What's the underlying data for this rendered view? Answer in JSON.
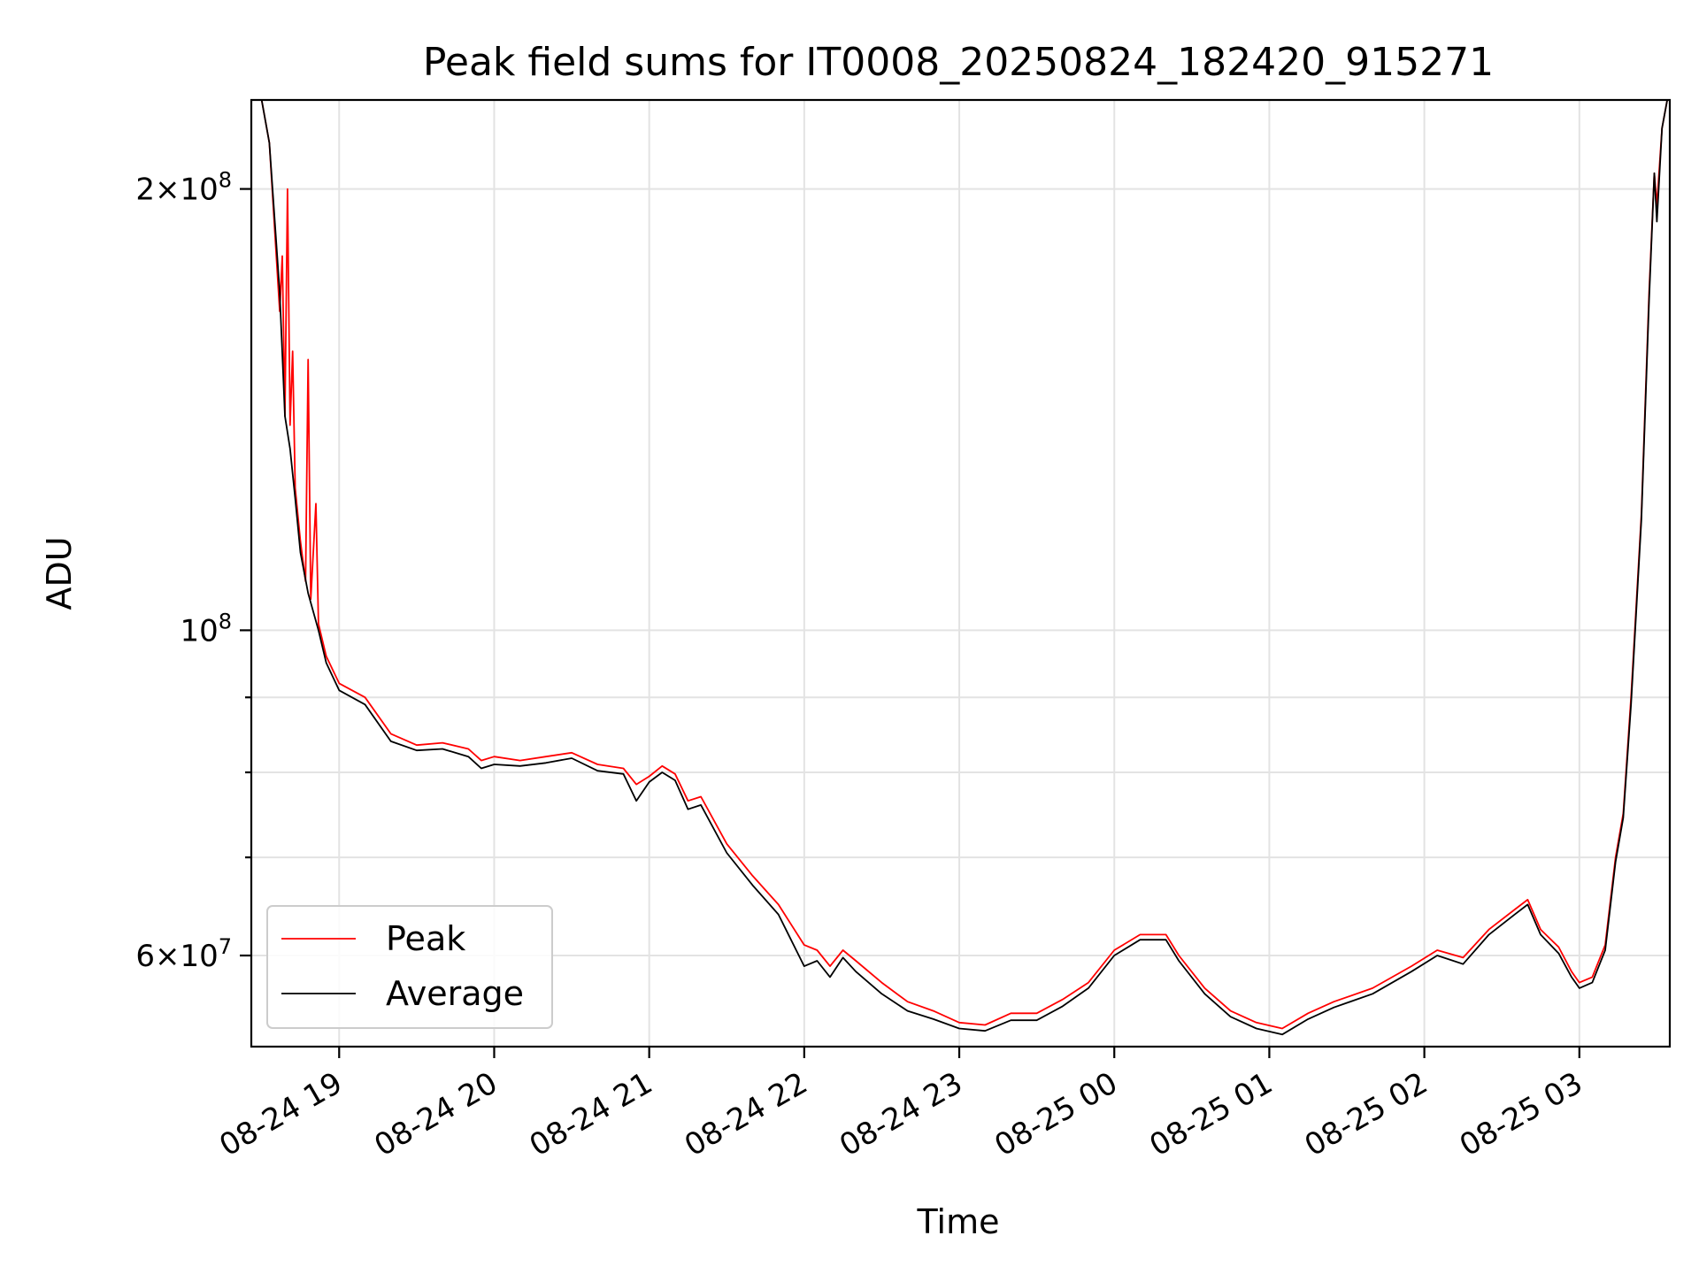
{
  "chart_data": {
    "type": "line",
    "title": "Peak field sums for IT0008_20250824_182420_915271",
    "xlabel": "Time",
    "ylabel": "ADU",
    "y_scale": "log",
    "grid": true,
    "legend_position": "lower-left",
    "xlim": [
      "2025-08-24 18:26",
      "2025-08-25 03:35"
    ],
    "ylim": [
      52000000,
      230000000
    ],
    "x_ticks": [
      {
        "time": "2025-08-24 19:00",
        "label": "08-24 19"
      },
      {
        "time": "2025-08-24 20:00",
        "label": "08-24 20"
      },
      {
        "time": "2025-08-24 21:00",
        "label": "08-24 21"
      },
      {
        "time": "2025-08-24 22:00",
        "label": "08-24 22"
      },
      {
        "time": "2025-08-24 23:00",
        "label": "08-24 23"
      },
      {
        "time": "2025-08-25 00:00",
        "label": "08-25 00"
      },
      {
        "time": "2025-08-25 01:00",
        "label": "08-25 01"
      },
      {
        "time": "2025-08-25 02:00",
        "label": "08-25 02"
      },
      {
        "time": "2025-08-25 03:00",
        "label": "08-25 03"
      }
    ],
    "y_ticks": [
      {
        "value": 60000000,
        "mantissa": "6",
        "exp": "7"
      },
      {
        "value": 100000000,
        "mantissa": "",
        "exp": "8"
      },
      {
        "value": 200000000,
        "mantissa": "2",
        "exp": "8"
      }
    ],
    "y_minor_ticks": [
      70000000,
      80000000,
      90000000
    ],
    "series": [
      {
        "name": "Peak",
        "color": "#ff0000",
        "points": [
          [
            "2025-08-24 18:30",
            230000000
          ],
          [
            "2025-08-24 18:33",
            215000000
          ],
          [
            "2025-08-24 18:37",
            165000000
          ],
          [
            "2025-08-24 18:38",
            180000000
          ],
          [
            "2025-08-24 18:39",
            140000000
          ],
          [
            "2025-08-24 18:40",
            200000000
          ],
          [
            "2025-08-24 18:41",
            138000000
          ],
          [
            "2025-08-24 18:42",
            155000000
          ],
          [
            "2025-08-24 18:43",
            125000000
          ],
          [
            "2025-08-24 18:45",
            115000000
          ],
          [
            "2025-08-24 18:47",
            108000000
          ],
          [
            "2025-08-24 18:48",
            153000000
          ],
          [
            "2025-08-24 18:49",
            105000000
          ],
          [
            "2025-08-24 18:51",
            122000000
          ],
          [
            "2025-08-24 18:52",
            101000000
          ],
          [
            "2025-08-24 18:55",
            96000000
          ],
          [
            "2025-08-24 19:00",
            92000000
          ],
          [
            "2025-08-24 19:10",
            90000000
          ],
          [
            "2025-08-24 19:20",
            85000000
          ],
          [
            "2025-08-24 19:30",
            83500000
          ],
          [
            "2025-08-24 19:40",
            83800000
          ],
          [
            "2025-08-24 19:50",
            83000000
          ],
          [
            "2025-08-24 19:55",
            81500000
          ],
          [
            "2025-08-24 20:00",
            82000000
          ],
          [
            "2025-08-24 20:10",
            81500000
          ],
          [
            "2025-08-24 20:20",
            82000000
          ],
          [
            "2025-08-24 20:30",
            82500000
          ],
          [
            "2025-08-24 20:40",
            81000000
          ],
          [
            "2025-08-24 20:50",
            80500000
          ],
          [
            "2025-08-24 20:55",
            78500000
          ],
          [
            "2025-08-24 21:00",
            79500000
          ],
          [
            "2025-08-24 21:05",
            80800000
          ],
          [
            "2025-08-24 21:10",
            79800000
          ],
          [
            "2025-08-24 21:15",
            76500000
          ],
          [
            "2025-08-24 21:20",
            77000000
          ],
          [
            "2025-08-24 21:30",
            71500000
          ],
          [
            "2025-08-24 21:40",
            68000000
          ],
          [
            "2025-08-24 21:50",
            65000000
          ],
          [
            "2025-08-24 22:00",
            61000000
          ],
          [
            "2025-08-24 22:05",
            60500000
          ],
          [
            "2025-08-24 22:10",
            59000000
          ],
          [
            "2025-08-24 22:15",
            60500000
          ],
          [
            "2025-08-24 22:20",
            59500000
          ],
          [
            "2025-08-24 22:30",
            57500000
          ],
          [
            "2025-08-24 22:40",
            55800000
          ],
          [
            "2025-08-24 22:50",
            55000000
          ],
          [
            "2025-08-24 23:00",
            54000000
          ],
          [
            "2025-08-24 23:10",
            53800000
          ],
          [
            "2025-08-24 23:20",
            54800000
          ],
          [
            "2025-08-24 23:30",
            54800000
          ],
          [
            "2025-08-24 23:40",
            56000000
          ],
          [
            "2025-08-24 23:50",
            57500000
          ],
          [
            "2025-08-25 00:00",
            60500000
          ],
          [
            "2025-08-25 00:10",
            62000000
          ],
          [
            "2025-08-25 00:20",
            62000000
          ],
          [
            "2025-08-25 00:25",
            60000000
          ],
          [
            "2025-08-25 00:35",
            57000000
          ],
          [
            "2025-08-25 00:45",
            55000000
          ],
          [
            "2025-08-25 00:55",
            54000000
          ],
          [
            "2025-08-25 01:05",
            53500000
          ],
          [
            "2025-08-25 01:15",
            54800000
          ],
          [
            "2025-08-25 01:25",
            55800000
          ],
          [
            "2025-08-25 01:40",
            57000000
          ],
          [
            "2025-08-25 01:55",
            59000000
          ],
          [
            "2025-08-25 02:05",
            60500000
          ],
          [
            "2025-08-25 02:15",
            59800000
          ],
          [
            "2025-08-25 02:25",
            62500000
          ],
          [
            "2025-08-25 02:35",
            64500000
          ],
          [
            "2025-08-25 02:40",
            65500000
          ],
          [
            "2025-08-25 02:45",
            62500000
          ],
          [
            "2025-08-25 02:52",
            60800000
          ],
          [
            "2025-08-25 02:57",
            58500000
          ],
          [
            "2025-08-25 03:00",
            57500000
          ],
          [
            "2025-08-25 03:05",
            58000000
          ],
          [
            "2025-08-25 03:10",
            61000000
          ],
          [
            "2025-08-25 03:14",
            70000000
          ],
          [
            "2025-08-25 03:17",
            75000000
          ],
          [
            "2025-08-25 03:20",
            90000000
          ],
          [
            "2025-08-25 03:24",
            120000000
          ],
          [
            "2025-08-25 03:27",
            170000000
          ],
          [
            "2025-08-25 03:29",
            205000000
          ],
          [
            "2025-08-25 03:30",
            195000000
          ],
          [
            "2025-08-25 03:32",
            220000000
          ],
          [
            "2025-08-25 03:34",
            230000000
          ]
        ]
      },
      {
        "name": "Average",
        "color": "#000000",
        "points": [
          [
            "2025-08-24 18:30",
            230000000
          ],
          [
            "2025-08-24 18:33",
            215000000
          ],
          [
            "2025-08-24 18:37",
            170000000
          ],
          [
            "2025-08-24 18:39",
            140000000
          ],
          [
            "2025-08-24 18:41",
            133000000
          ],
          [
            "2025-08-24 18:43",
            123000000
          ],
          [
            "2025-08-24 18:45",
            113000000
          ],
          [
            "2025-08-24 18:48",
            106000000
          ],
          [
            "2025-08-24 18:52",
            100000000
          ],
          [
            "2025-08-24 18:55",
            95000000
          ],
          [
            "2025-08-24 19:00",
            91000000
          ],
          [
            "2025-08-24 19:10",
            89000000
          ],
          [
            "2025-08-24 19:20",
            84000000
          ],
          [
            "2025-08-24 19:30",
            82800000
          ],
          [
            "2025-08-24 19:40",
            83000000
          ],
          [
            "2025-08-24 19:50",
            82000000
          ],
          [
            "2025-08-24 19:55",
            80500000
          ],
          [
            "2025-08-24 20:00",
            81000000
          ],
          [
            "2025-08-24 20:10",
            80800000
          ],
          [
            "2025-08-24 20:20",
            81200000
          ],
          [
            "2025-08-24 20:30",
            81800000
          ],
          [
            "2025-08-24 20:40",
            80200000
          ],
          [
            "2025-08-24 20:50",
            79800000
          ],
          [
            "2025-08-24 20:55",
            76500000
          ],
          [
            "2025-08-24 21:00",
            78800000
          ],
          [
            "2025-08-24 21:05",
            80000000
          ],
          [
            "2025-08-24 21:10",
            79000000
          ],
          [
            "2025-08-24 21:15",
            75500000
          ],
          [
            "2025-08-24 21:20",
            76000000
          ],
          [
            "2025-08-24 21:30",
            70500000
          ],
          [
            "2025-08-24 21:40",
            67000000
          ],
          [
            "2025-08-24 21:50",
            64000000
          ],
          [
            "2025-08-24 22:00",
            59000000
          ],
          [
            "2025-08-24 22:05",
            59500000
          ],
          [
            "2025-08-24 22:10",
            58000000
          ],
          [
            "2025-08-24 22:15",
            59800000
          ],
          [
            "2025-08-24 22:20",
            58500000
          ],
          [
            "2025-08-24 22:30",
            56500000
          ],
          [
            "2025-08-24 22:40",
            55000000
          ],
          [
            "2025-08-24 22:50",
            54300000
          ],
          [
            "2025-08-24 23:00",
            53500000
          ],
          [
            "2025-08-24 23:10",
            53300000
          ],
          [
            "2025-08-24 23:20",
            54200000
          ],
          [
            "2025-08-24 23:30",
            54200000
          ],
          [
            "2025-08-24 23:40",
            55400000
          ],
          [
            "2025-08-24 23:50",
            57000000
          ],
          [
            "2025-08-25 00:00",
            60000000
          ],
          [
            "2025-08-25 00:10",
            61500000
          ],
          [
            "2025-08-25 00:20",
            61500000
          ],
          [
            "2025-08-25 00:25",
            59500000
          ],
          [
            "2025-08-25 00:35",
            56500000
          ],
          [
            "2025-08-25 00:45",
            54500000
          ],
          [
            "2025-08-25 00:55",
            53500000
          ],
          [
            "2025-08-25 01:05",
            53000000
          ],
          [
            "2025-08-25 01:15",
            54300000
          ],
          [
            "2025-08-25 01:25",
            55300000
          ],
          [
            "2025-08-25 01:40",
            56500000
          ],
          [
            "2025-08-25 01:55",
            58500000
          ],
          [
            "2025-08-25 02:05",
            60000000
          ],
          [
            "2025-08-25 02:15",
            59200000
          ],
          [
            "2025-08-25 02:25",
            62000000
          ],
          [
            "2025-08-25 02:35",
            64000000
          ],
          [
            "2025-08-25 02:40",
            65000000
          ],
          [
            "2025-08-25 02:45",
            62000000
          ],
          [
            "2025-08-25 02:52",
            60200000
          ],
          [
            "2025-08-25 02:57",
            58000000
          ],
          [
            "2025-08-25 03:00",
            57000000
          ],
          [
            "2025-08-25 03:05",
            57500000
          ],
          [
            "2025-08-25 03:10",
            60500000
          ],
          [
            "2025-08-25 03:14",
            69500000
          ],
          [
            "2025-08-25 03:17",
            74500000
          ],
          [
            "2025-08-25 03:20",
            89000000
          ],
          [
            "2025-08-25 03:24",
            119000000
          ],
          [
            "2025-08-25 03:27",
            168000000
          ],
          [
            "2025-08-25 03:29",
            205000000
          ],
          [
            "2025-08-25 03:30",
            190000000
          ],
          [
            "2025-08-25 03:32",
            220000000
          ],
          [
            "2025-08-25 03:34",
            230000000
          ]
        ]
      }
    ]
  }
}
